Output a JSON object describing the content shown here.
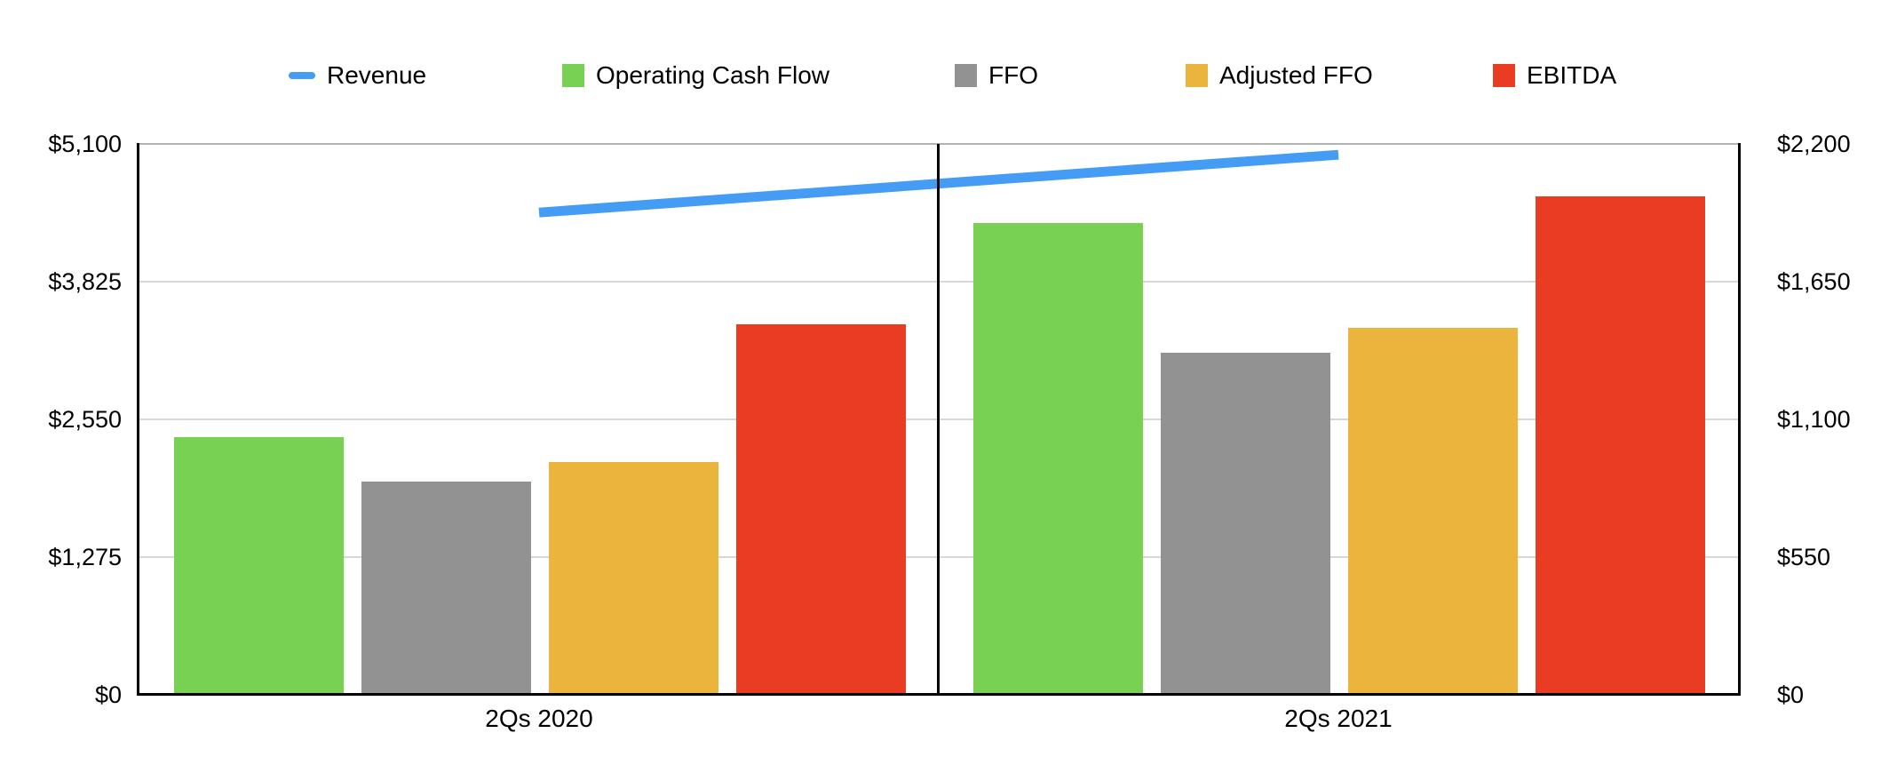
{
  "chart_data": {
    "type": "bar",
    "subtype": "grouped bars with line overlay, dual value axes",
    "title": "",
    "categories": [
      "2Qs 2020",
      "2Qs 2021"
    ],
    "series": [
      {
        "name": "Revenue",
        "type": "line",
        "axis": "left",
        "color": "#459CF4",
        "values": [
          4465,
          5000
        ]
      },
      {
        "name": "Operating Cash Flow",
        "type": "bar",
        "axis": "right",
        "color": "#78D153",
        "values": [
          1030,
          1885
        ]
      },
      {
        "name": "FFO",
        "type": "bar",
        "axis": "right",
        "color": "#929292",
        "values": [
          850,
          1365
        ]
      },
      {
        "name": "Adjusted FFO",
        "type": "bar",
        "axis": "right",
        "color": "#EBB43C",
        "values": [
          930,
          1465
        ]
      },
      {
        "name": "EBITDA",
        "type": "bar",
        "axis": "right",
        "color": "#EA3C23",
        "values": [
          1480,
          1990
        ]
      }
    ],
    "left_axis": {
      "ticks": [
        "$5,100",
        "$3,825",
        "$2,550",
        "$1,275",
        "$0"
      ],
      "min": 0,
      "max": 5100
    },
    "right_axis": {
      "ticks": [
        "$2,200",
        "$1,650",
        "$1,100",
        "$550",
        "$0"
      ],
      "min": 0,
      "max": 2200
    },
    "legend_position": "top",
    "grid": true,
    "plot_background": "#ffffff"
  }
}
